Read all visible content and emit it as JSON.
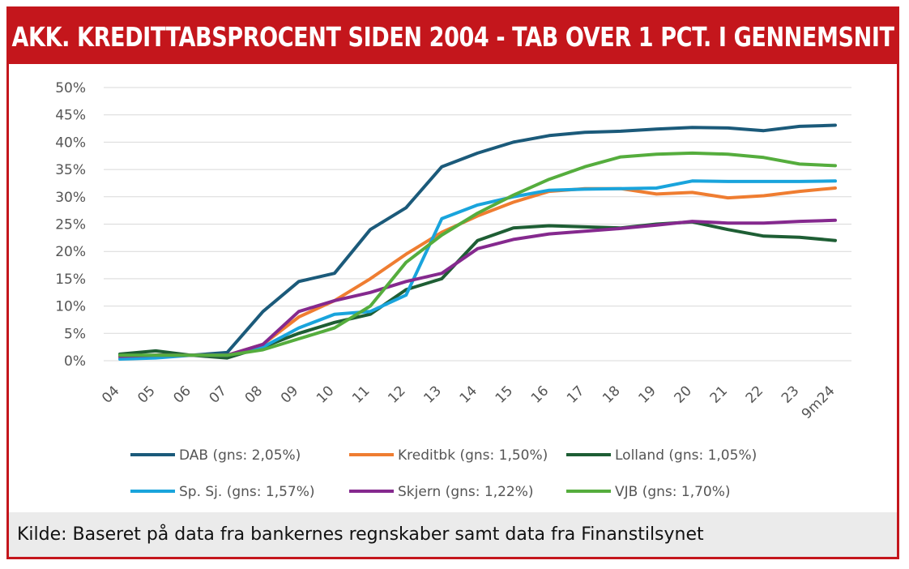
{
  "header": {
    "title": "AKK. KREDITTABSPROCENT SIDEN 2004 - TAB OVER 1 PCT. I GENNEMSNIT"
  },
  "footer": {
    "source": "Kilde: Baseret på data fra bankernes regnskaber samt data fra Finanstilsynet"
  },
  "colors": {
    "accent": "#c4161c"
  },
  "chart_data": {
    "type": "line",
    "title": "AKK. KREDITTABSPROCENT SIDEN 2004 - TAB OVER 1 PCT. I GENNEMSNIT",
    "xlabel": "",
    "ylabel": "",
    "ylim": [
      0,
      50
    ],
    "grid": true,
    "legend_position": "bottom",
    "categories": [
      "04",
      "05",
      "06",
      "07",
      "08",
      "09",
      "10",
      "11",
      "12",
      "13",
      "14",
      "15",
      "16",
      "17",
      "18",
      "19",
      "20",
      "21",
      "22",
      "23",
      "9m24"
    ],
    "yticks": [
      "0%",
      "5%",
      "10%",
      "15%",
      "20%",
      "25%",
      "30%",
      "35%",
      "40%",
      "45%",
      "50%"
    ],
    "series": [
      {
        "name": "DAB (gns: 2,05%)",
        "color": "#1b5a7a",
        "values": [
          0.5,
          1,
          1,
          1.5,
          9,
          14.5,
          16,
          24,
          28,
          35.5,
          38,
          40,
          41.2,
          41.8,
          42,
          42.4,
          42.7,
          42.6,
          42.1,
          42.9,
          43.1
        ]
      },
      {
        "name": "Kreditbk (gns: 1,50%)",
        "color": "#ef7d31",
        "values": [
          0.5,
          1,
          1,
          1,
          3,
          8,
          11,
          15,
          19.5,
          23.5,
          26.5,
          29,
          31,
          31.5,
          31.5,
          30.5,
          30.8,
          29.8,
          30.2,
          31,
          31.6
        ]
      },
      {
        "name": "Lolland (gns: 1,05%)",
        "color": "#1e5e34",
        "values": [
          1.2,
          1.8,
          1,
          0.5,
          2.5,
          5,
          7,
          8.5,
          13,
          15,
          22,
          24.3,
          24.7,
          24.5,
          24.3,
          25,
          25.4,
          24,
          22.8,
          22.6,
          22
        ]
      },
      {
        "name": "Sp. Sj. (gns: 1,57%)",
        "color": "#19a4dc",
        "values": [
          0.3,
          0.5,
          1,
          1,
          2.5,
          6,
          8.5,
          9,
          12,
          26,
          28.5,
          30,
          31.2,
          31.4,
          31.5,
          31.6,
          32.9,
          32.8,
          32.8,
          32.8,
          32.9
        ]
      },
      {
        "name": "Skjern (gns: 1,22%)",
        "color": "#85298e",
        "values": [
          0.8,
          1,
          1,
          1,
          3,
          9,
          11,
          12.5,
          14.5,
          16,
          20.5,
          22.2,
          23.2,
          23.7,
          24.2,
          24.8,
          25.5,
          25.2,
          25.2,
          25.5,
          25.7
        ]
      },
      {
        "name": "VJB (gns: 1,70%)",
        "color": "#55ad3d",
        "values": [
          1,
          1,
          1,
          1,
          2,
          4,
          6,
          10,
          18,
          23,
          27,
          30.3,
          33.2,
          35.5,
          37.3,
          37.8,
          38,
          37.8,
          37.2,
          36,
          35.7
        ]
      }
    ]
  }
}
